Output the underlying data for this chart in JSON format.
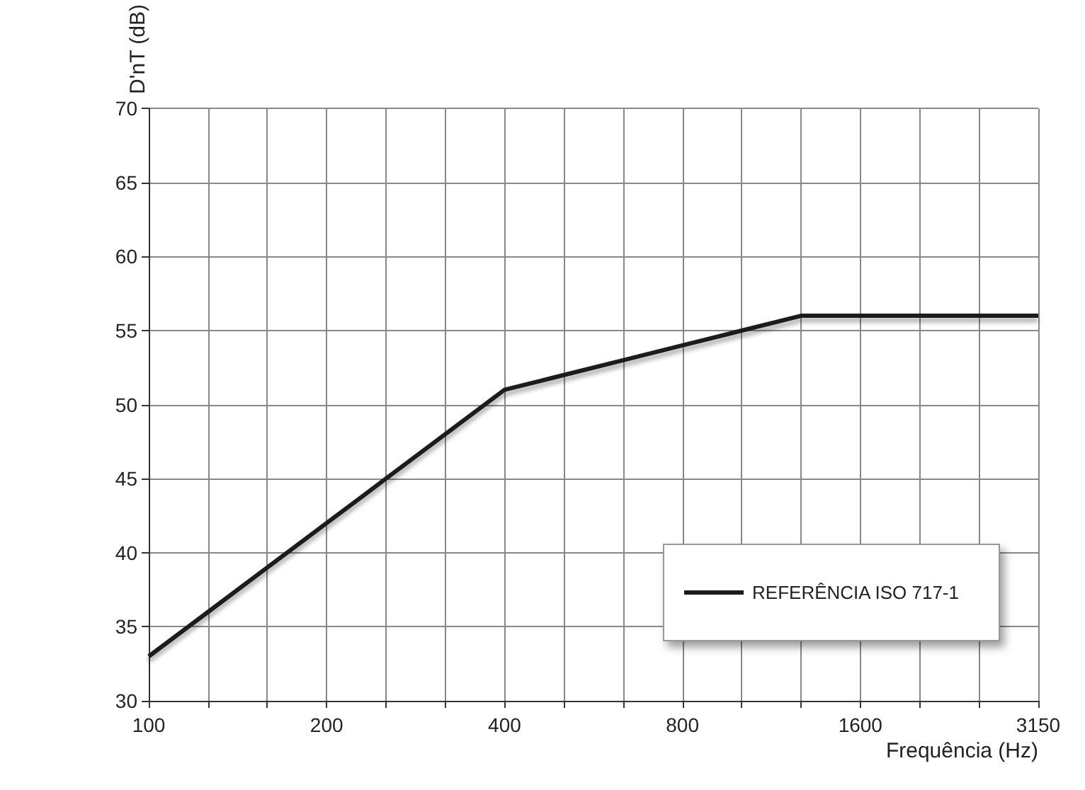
{
  "chart_data": {
    "type": "line",
    "xlabel": "Frequência (Hz)",
    "ylabel": "D'nT (dB)",
    "categories": [
      "100",
      null,
      null,
      "200",
      null,
      null,
      "400",
      null,
      null,
      "800",
      null,
      null,
      "1600",
      null,
      null,
      "3150"
    ],
    "series": [
      {
        "name": "REFERÊNCIA ISO 717-1",
        "color": "#1a1a1a",
        "values": [
          33,
          36,
          39,
          42,
          45,
          48,
          51,
          52,
          53,
          54,
          55,
          56,
          56,
          56,
          56,
          56
        ]
      }
    ],
    "ylim": [
      30,
      70
    ],
    "yticks": [
      30,
      35,
      40,
      45,
      50,
      55,
      60,
      65,
      70
    ],
    "grid": true,
    "legend": "bottom right",
    "marker": "none"
  }
}
